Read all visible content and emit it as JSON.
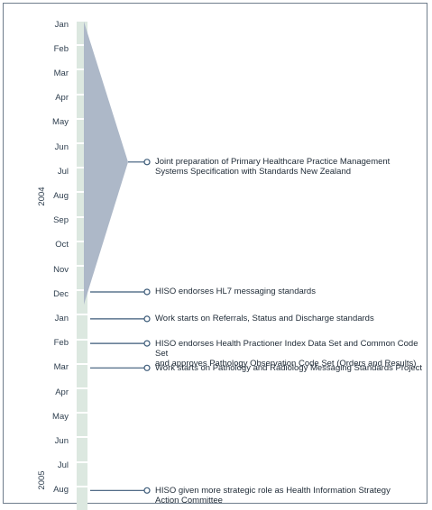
{
  "colors": {
    "bar": "#dce8e0",
    "wedge": "#adb8c8",
    "line": "#3b5a78",
    "frame": "#6f7d8c",
    "text": "#1e2a36"
  },
  "timeline": {
    "months": [
      "Jan",
      "Feb",
      "Mar",
      "Apr",
      "May",
      "Jun",
      "Jul",
      "Aug",
      "Sep",
      "Oct",
      "Nov",
      "Dec",
      "Jan",
      "Feb",
      "Mar",
      "Apr",
      "May",
      "Jun",
      "Jul",
      "Aug"
    ],
    "years": [
      {
        "label": "2004",
        "month_index": 7
      },
      {
        "label": "2005",
        "month_index": 18.6
      }
    ]
  },
  "events": [
    {
      "month_index": 5.6,
      "lines": [
        "Joint preparation of Primary Healthcare Practice Management",
        "Systems Specification with Standards New Zealand"
      ],
      "kind": "range",
      "range": [
        0,
        10.9
      ]
    },
    {
      "month_index": 10.9,
      "lines": [
        "HISO endorses HL7 messaging standards"
      ],
      "kind": "point"
    },
    {
      "month_index": 12.0,
      "lines": [
        "Work starts on Referrals, Status and Discharge standards"
      ],
      "kind": "point"
    },
    {
      "month_index": 13.0,
      "lines": [
        "HISO endorses Health Practioner Index Data Set and Common Code Set",
        "and approves Pathology Observation Code Set (Orders and Results)"
      ],
      "kind": "point"
    },
    {
      "month_index": 14.0,
      "lines": [
        "Work starts on Pathology and Radiology Messaging Standards Project"
      ],
      "kind": "point"
    },
    {
      "month_index": 19.0,
      "lines": [
        "HISO given more strategic role as Health Information Strategy",
        "Action Committee"
      ],
      "kind": "point"
    }
  ]
}
